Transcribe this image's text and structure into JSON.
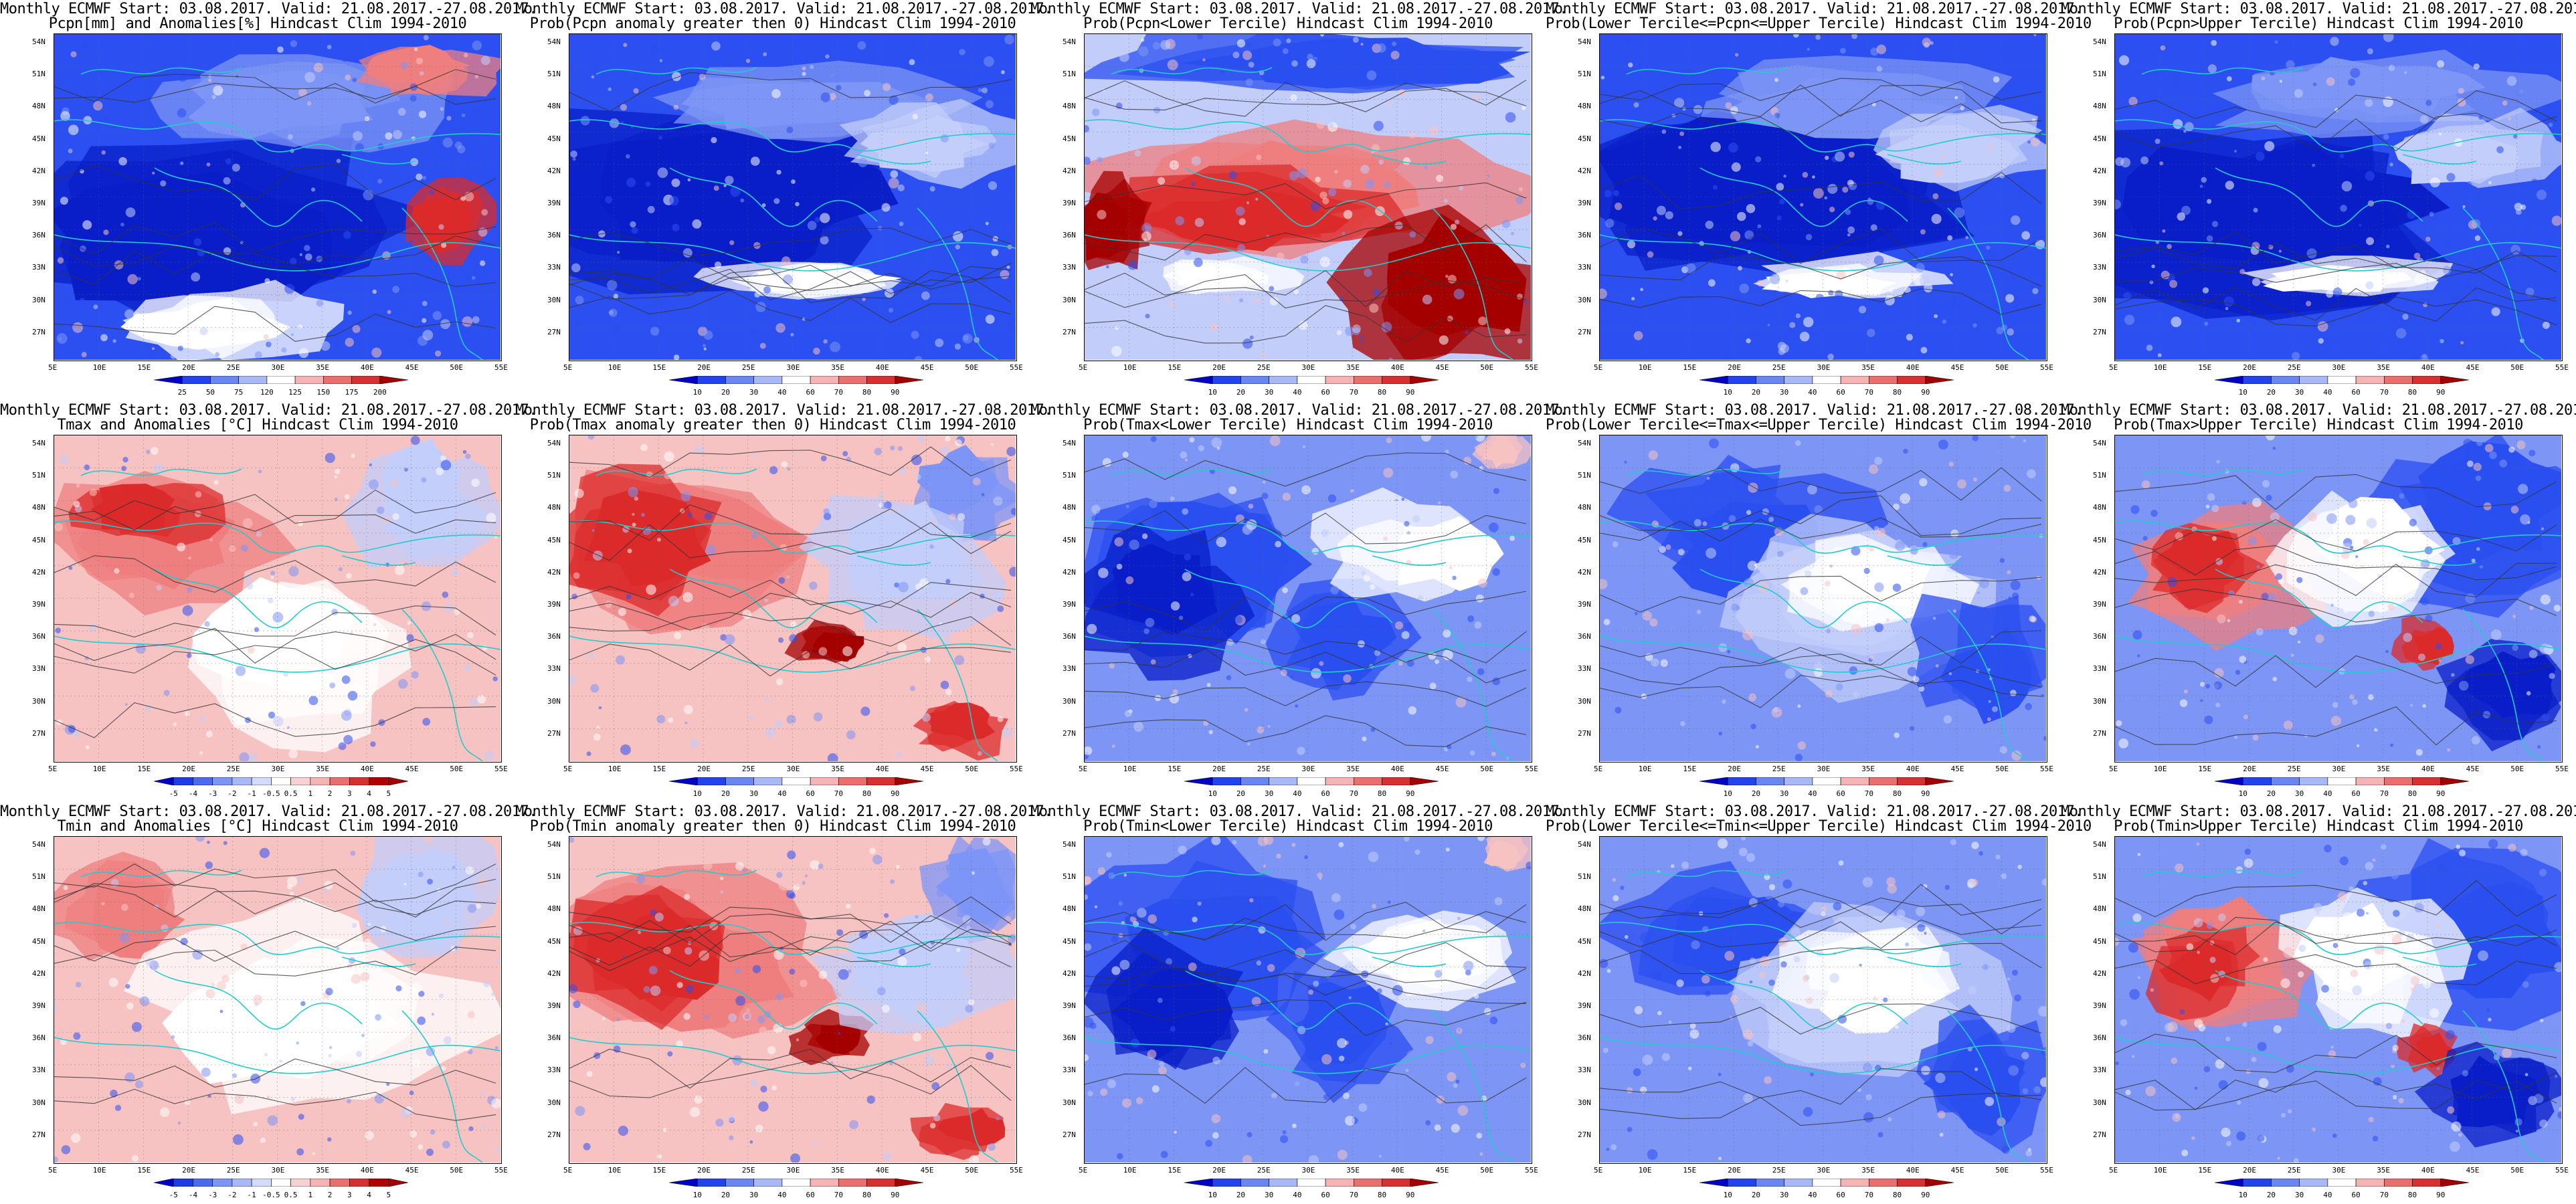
{
  "common": {
    "title_line1": "Monthly ECMWF Start: 03.08.2017. Valid: 21.08.2017.-27.08.2017.",
    "lat_labels": [
      "54N",
      "51N",
      "48N",
      "45N",
      "42N",
      "39N",
      "36N",
      "33N",
      "30N",
      "27N"
    ],
    "lon_labels": [
      "5E",
      "10E",
      "15E",
      "20E",
      "25E",
      "30E",
      "35E",
      "40E",
      "45E",
      "50E",
      "55E"
    ]
  },
  "colorbars": {
    "precip": [
      "25",
      "50",
      "75",
      "120",
      "125",
      "150",
      "175",
      "200"
    ],
    "prob": [
      "10",
      "20",
      "30",
      "40",
      "60",
      "70",
      "80",
      "90"
    ],
    "temp": [
      "-5",
      "-4",
      "-3",
      "-2",
      "-1",
      "-0.5",
      "0.5",
      "1",
      "2",
      "3",
      "4",
      "5"
    ]
  },
  "colors": {
    "blue_deep": "#0a1fc8",
    "blue": "#2b4ff0",
    "blue_light": "#7d95f5",
    "blue_pale": "#c3cdfa",
    "white": "#ffffff",
    "red_pale": "#f7c2c2",
    "red_light": "#ef7f7f",
    "red": "#dc2b2b",
    "red_deep": "#a50000",
    "coast": "#22cccc",
    "contour": "#333333"
  },
  "panels": [
    {
      "title2": "Pcpn[mm] and Anomalies[%] Hindcast Clim 1994-2010",
      "scheme": "anom_precip",
      "cbar": "precip"
    },
    {
      "title2": "Prob(Pcpn anomaly greater then 0) Hindcast Clim 1994-2010",
      "scheme": "blue",
      "cbar": "prob"
    },
    {
      "title2": "Prob(Pcpn<Lower Tercile) Hindcast Clim 1994-2010",
      "scheme": "red_south",
      "cbar": "prob"
    },
    {
      "title2": "Prob(Lower Tercile<=Pcpn<=Upper Tercile) Hindcast Clim 1994-2010",
      "scheme": "blue",
      "cbar": "prob"
    },
    {
      "title2": "Prob(Pcpn>Upper Tercile) Hindcast Clim 1994-2010",
      "scheme": "blue",
      "cbar": "prob"
    },
    {
      "title2": "Tmax and Anomalies [°C] Hindcast Clim 1994-2010",
      "scheme": "red_west",
      "cbar": "temp"
    },
    {
      "title2": "Prob(Tmax anomaly greater then 0) Hindcast Clim 1994-2010",
      "scheme": "red_west_strong",
      "cbar": "prob"
    },
    {
      "title2": "Prob(Tmax<Lower Tercile) Hindcast Clim 1994-2010",
      "scheme": "blue_west",
      "cbar": "prob"
    },
    {
      "title2": "Prob(Lower Tercile<=Tmax<=Upper Tercile) Hindcast Clim 1994-2010",
      "scheme": "mixed_blue",
      "cbar": "prob"
    },
    {
      "title2": "Prob(Tmax>Upper Tercile) Hindcast Clim 1994-2010",
      "scheme": "red_west_blue_east",
      "cbar": "prob"
    },
    {
      "title2": "Tmin and Anomalies [°C] Hindcast Clim 1994-2010",
      "scheme": "red_west_light",
      "cbar": "temp"
    },
    {
      "title2": "Prob(Tmin anomaly greater then 0) Hindcast Clim 1994-2010",
      "scheme": "red_west_strong",
      "cbar": "prob"
    },
    {
      "title2": "Prob(Tmin<Lower Tercile) Hindcast Clim 1994-2010",
      "scheme": "blue_west",
      "cbar": "prob"
    },
    {
      "title2": "Prob(Lower Tercile<=Tmin<=Upper Tercile) Hindcast Clim 1994-2010",
      "scheme": "mixed_blue",
      "cbar": "prob"
    },
    {
      "title2": "Prob(Tmin>Upper Tercile) Hindcast Clim 1994-2010",
      "scheme": "red_west_blue_east",
      "cbar": "prob"
    }
  ]
}
